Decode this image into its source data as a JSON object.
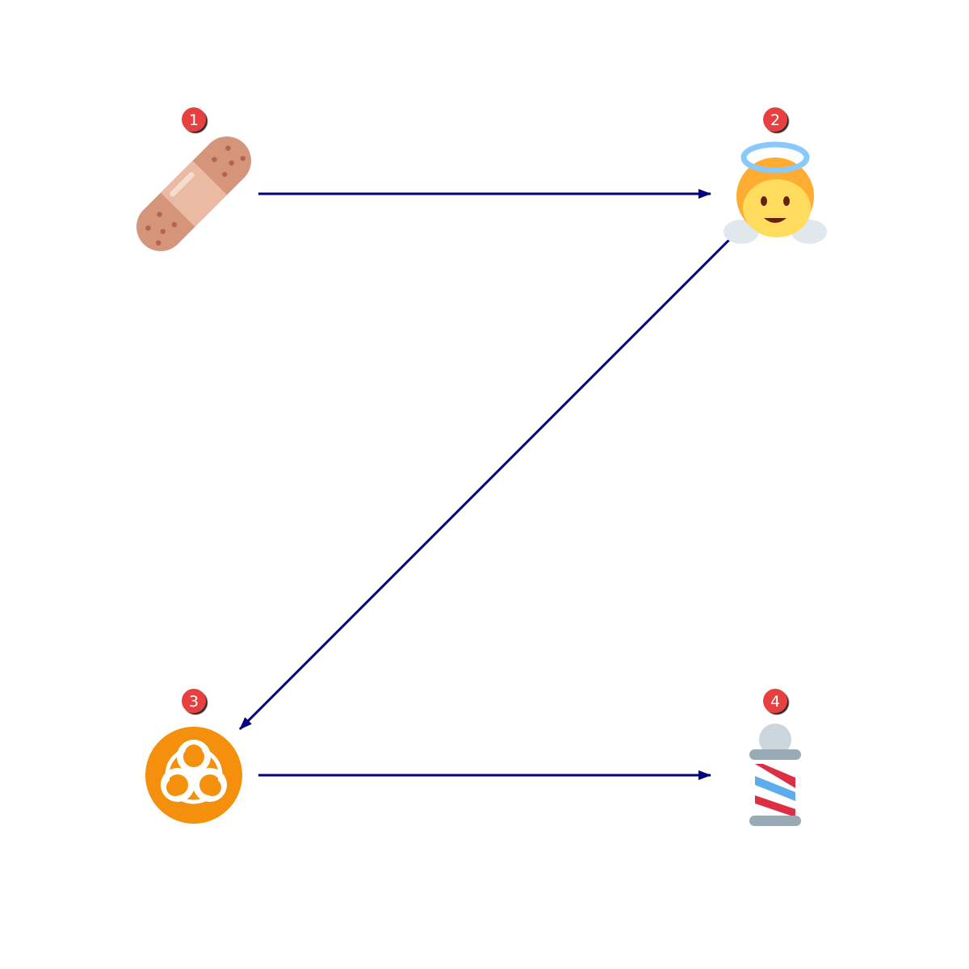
{
  "diagram": {
    "arrow_color": "#000080",
    "badge_color": "#e8403f",
    "nodes": [
      {
        "id": "n1",
        "label": "1",
        "icon": "adhesive-bandage-icon"
      },
      {
        "id": "n2",
        "label": "2",
        "icon": "baby-angel-icon"
      },
      {
        "id": "n3",
        "label": "3",
        "icon": "biohazard-icon"
      },
      {
        "id": "n4",
        "label": "4",
        "icon": "barber-pole-icon"
      }
    ],
    "edges": [
      {
        "from": "1",
        "to": "2"
      },
      {
        "from": "2",
        "to": "3"
      },
      {
        "from": "3",
        "to": "4"
      }
    ]
  }
}
